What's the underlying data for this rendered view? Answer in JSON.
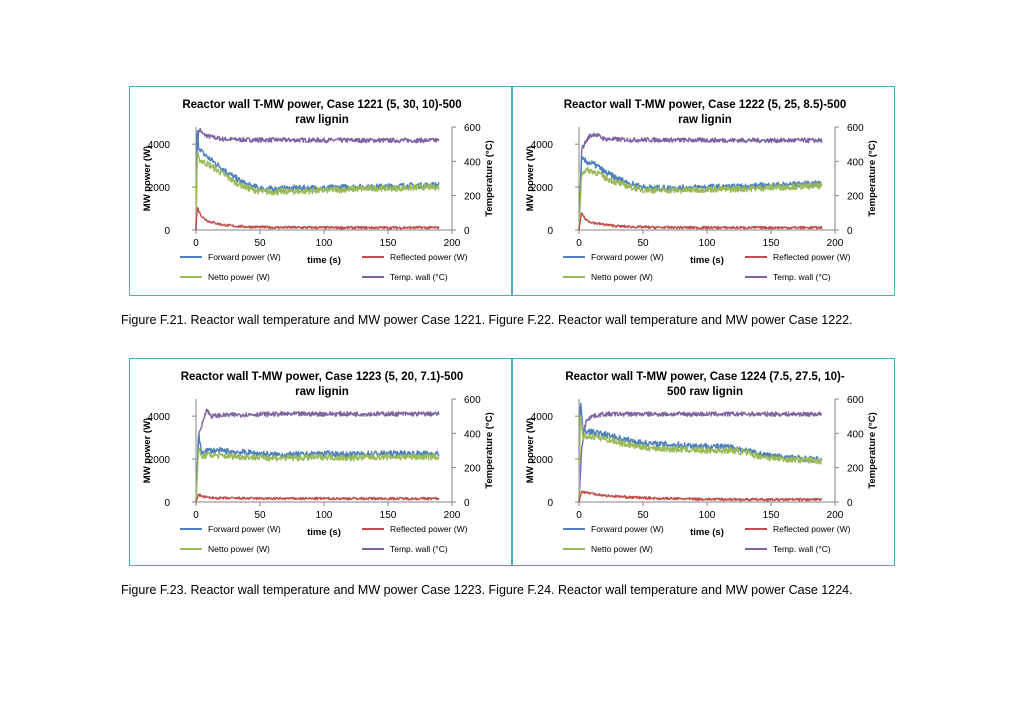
{
  "captions": [
    "Figure F.21. Reactor wall temperature and MW power Case 1221. Figure F.22. Reactor wall temperature and MW power Case 1222.",
    "Figure F.23. Reactor wall temperature and MW power Case 1223. Figure F.24. Reactor wall temperature and MW power Case 1224."
  ],
  "colors": {
    "forward": "#4f81bd",
    "reflected": "#c0504d",
    "netto": "#9bbb59",
    "temp": "#8064a2",
    "frame": "#4bacc6"
  },
  "chart_data": [
    {
      "type": "line",
      "title": "Reactor wall T-MW power, Case 1221 (5, 30, 10)-500",
      "title2": "raw lignin",
      "xlabel": "time (s)",
      "ylabel": "MW power (W)",
      "y2label": "Temperature (°C)",
      "xlim": [
        0,
        200
      ],
      "ylim": [
        0,
        4800
      ],
      "y2lim": [
        0,
        600
      ],
      "xticks": [
        "0",
        "50",
        "100",
        "150",
        "200"
      ],
      "yticks": [
        "0",
        "2000",
        "4000"
      ],
      "y2ticks": [
        "0",
        "200",
        "400",
        "600"
      ],
      "legend": [
        "Forward power (W)",
        "Reflected power (W)",
        "Netto power (W)",
        "Temp. wall (°C)"
      ],
      "series": [
        {
          "name": "Forward power (W)",
          "axis": "left",
          "x": [
            0,
            1,
            2,
            5,
            10,
            20,
            30,
            40,
            50,
            60,
            80,
            100,
            120,
            140,
            160,
            180,
            190
          ],
          "values": [
            0,
            4950,
            3900,
            3600,
            3350,
            2900,
            2450,
            2100,
            1950,
            1900,
            1950,
            1950,
            2000,
            2000,
            2050,
            2080,
            2100
          ]
        },
        {
          "name": "Netto power (W)",
          "axis": "left",
          "x": [
            0,
            1,
            2,
            5,
            10,
            20,
            30,
            40,
            50,
            60,
            80,
            100,
            120,
            140,
            160,
            180,
            190
          ],
          "values": [
            0,
            3800,
            3300,
            3200,
            3050,
            2650,
            2250,
            1950,
            1800,
            1780,
            1800,
            1850,
            1900,
            1950,
            1950,
            2000,
            2000
          ]
        },
        {
          "name": "Reflected power (W)",
          "axis": "left",
          "x": [
            0,
            1,
            2,
            5,
            10,
            20,
            30,
            40,
            60,
            100,
            150,
            190
          ],
          "values": [
            0,
            1100,
            900,
            600,
            400,
            250,
            180,
            150,
            120,
            110,
            110,
            110
          ]
        },
        {
          "name": "Temp. wall (°C)",
          "axis": "right",
          "x": [
            0,
            1,
            3,
            5,
            10,
            20,
            40,
            60,
            100,
            150,
            190
          ],
          "values": [
            0,
            540,
            590,
            560,
            545,
            530,
            525,
            525,
            523,
            522,
            522
          ]
        }
      ]
    },
    {
      "type": "line",
      "title": "Reactor wall T-MW power, Case 1222 (5, 25, 8.5)-500",
      "title2": "raw lignin",
      "xlabel": "time (s)",
      "ylabel": "MW power (W)",
      "y2label": "Temperature (°C)",
      "xlim": [
        0,
        200
      ],
      "ylim": [
        0,
        4800
      ],
      "y2lim": [
        0,
        600
      ],
      "xticks": [
        "0",
        "50",
        "100",
        "150",
        "200"
      ],
      "yticks": [
        "0",
        "2000",
        "4000"
      ],
      "y2ticks": [
        "0",
        "200",
        "400",
        "600"
      ],
      "legend": [
        "Forward power (W)",
        "Reflected power (W)",
        "Netto power (W)",
        "Temp. wall (°C)"
      ],
      "series": [
        {
          "name": "Forward power (W)",
          "axis": "left",
          "x": [
            0,
            2,
            5,
            10,
            15,
            20,
            30,
            40,
            50,
            60,
            80,
            100,
            120,
            140,
            160,
            180,
            190
          ],
          "values": [
            0,
            3300,
            3200,
            3100,
            2950,
            2700,
            2400,
            2150,
            2000,
            1950,
            1950,
            2000,
            2000,
            2050,
            2100,
            2150,
            2150
          ]
        },
        {
          "name": "Netto power (W)",
          "axis": "left",
          "x": [
            0,
            2,
            5,
            10,
            15,
            20,
            30,
            40,
            50,
            60,
            80,
            100,
            120,
            140,
            160,
            180,
            190
          ],
          "values": [
            0,
            2600,
            2800,
            2750,
            2650,
            2450,
            2200,
            2000,
            1880,
            1850,
            1850,
            1900,
            1900,
            1950,
            2000,
            2050,
            2050
          ]
        },
        {
          "name": "Reflected power (W)",
          "axis": "left",
          "x": [
            0,
            2,
            5,
            10,
            20,
            30,
            40,
            60,
            100,
            150,
            190
          ],
          "values": [
            0,
            800,
            500,
            350,
            250,
            180,
            150,
            120,
            110,
            110,
            110
          ]
        },
        {
          "name": "Temp. wall (°C)",
          "axis": "right",
          "x": [
            0,
            2,
            5,
            8,
            12,
            20,
            40,
            60,
            100,
            150,
            190
          ],
          "values": [
            0,
            470,
            510,
            545,
            560,
            530,
            525,
            525,
            523,
            522,
            522
          ]
        }
      ]
    },
    {
      "type": "line",
      "title": "Reactor wall T-MW power, Case 1223 (5, 20, 7.1)-500",
      "title2": "raw lignin",
      "xlabel": "time (s)",
      "ylabel": "MW power (W)",
      "y2label": "Temperature (°C)",
      "xlim": [
        0,
        200
      ],
      "ylim": [
        0,
        4800
      ],
      "y2lim": [
        0,
        600
      ],
      "xticks": [
        "0",
        "50",
        "100",
        "150",
        "200"
      ],
      "yticks": [
        "0",
        "2000",
        "4000"
      ],
      "y2ticks": [
        "0",
        "200",
        "400",
        "600"
      ],
      "legend": [
        "Forward power (W)",
        "Reflected power (W)",
        "Netto power (W)",
        "Temp. wall (°C)"
      ],
      "series": [
        {
          "name": "Forward power (W)",
          "axis": "left",
          "x": [
            0,
            2,
            4,
            6,
            10,
            20,
            40,
            60,
            80,
            100,
            120,
            140,
            160,
            180,
            190
          ],
          "values": [
            0,
            3300,
            2300,
            2350,
            2400,
            2380,
            2300,
            2200,
            2200,
            2250,
            2200,
            2250,
            2250,
            2250,
            2250
          ]
        },
        {
          "name": "Netto power (W)",
          "axis": "left",
          "x": [
            0,
            2,
            4,
            6,
            10,
            20,
            40,
            60,
            80,
            100,
            120,
            140,
            160,
            180,
            190
          ],
          "values": [
            0,
            2600,
            2100,
            2150,
            2200,
            2150,
            2100,
            2050,
            2050,
            2100,
            2050,
            2100,
            2100,
            2100,
            2100
          ]
        },
        {
          "name": "Reflected power (W)",
          "axis": "left",
          "x": [
            0,
            2,
            5,
            10,
            20,
            40,
            60,
            100,
            150,
            190
          ],
          "values": [
            0,
            350,
            250,
            200,
            180,
            170,
            160,
            160,
            160,
            160
          ]
        },
        {
          "name": "Temp. wall (°C)",
          "axis": "right",
          "x": [
            0,
            2,
            5,
            8,
            12,
            20,
            40,
            60,
            100,
            150,
            190
          ],
          "values": [
            0,
            380,
            460,
            540,
            500,
            505,
            510,
            512,
            513,
            513,
            513
          ]
        }
      ]
    },
    {
      "type": "line",
      "title": "Reactor wall T-MW power, Case 1224 (7.5, 27.5, 10)-",
      "title2": "500 raw lignin",
      "xlabel": "time (s)",
      "ylabel": "MW power (W)",
      "y2label": "Temperature (°C)",
      "xlim": [
        0,
        200
      ],
      "ylim": [
        0,
        4800
      ],
      "y2lim": [
        0,
        600
      ],
      "xticks": [
        "0",
        "50",
        "100",
        "150",
        "200"
      ],
      "yticks": [
        "0",
        "2000",
        "4000"
      ],
      "y2ticks": [
        "0",
        "200",
        "400",
        "600"
      ],
      "legend": [
        "Forward power (W)",
        "Reflected power (W)",
        "Netto power (W)",
        "Temp. wall (°C)"
      ],
      "series": [
        {
          "name": "Forward power (W)",
          "axis": "left",
          "x": [
            0,
            1,
            3,
            5,
            10,
            20,
            30,
            40,
            50,
            60,
            80,
            100,
            120,
            130,
            140,
            150,
            160,
            180,
            190
          ],
          "values": [
            0,
            4800,
            3400,
            3300,
            3250,
            3150,
            3000,
            2850,
            2750,
            2700,
            2650,
            2600,
            2550,
            2400,
            2250,
            2150,
            2100,
            2000,
            1950
          ]
        },
        {
          "name": "Netto power (W)",
          "axis": "left",
          "x": [
            0,
            1,
            3,
            5,
            10,
            20,
            30,
            40,
            50,
            60,
            80,
            100,
            120,
            130,
            140,
            150,
            160,
            180,
            190
          ],
          "values": [
            0,
            4200,
            3000,
            3050,
            3050,
            2950,
            2800,
            2650,
            2550,
            2500,
            2450,
            2400,
            2400,
            2300,
            2150,
            2050,
            2000,
            1950,
            1900
          ]
        },
        {
          "name": "Reflected power (W)",
          "axis": "left",
          "x": [
            0,
            2,
            5,
            10,
            20,
            40,
            60,
            100,
            150,
            190
          ],
          "values": [
            0,
            500,
            450,
            400,
            300,
            220,
            170,
            130,
            110,
            110
          ]
        },
        {
          "name": "Temp. wall (°C)",
          "axis": "right",
          "x": [
            0,
            2,
            4,
            6,
            10,
            20,
            40,
            60,
            100,
            150,
            190
          ],
          "values": [
            0,
            300,
            420,
            480,
            500,
            512,
            512,
            512,
            512,
            512,
            512
          ]
        }
      ]
    }
  ]
}
